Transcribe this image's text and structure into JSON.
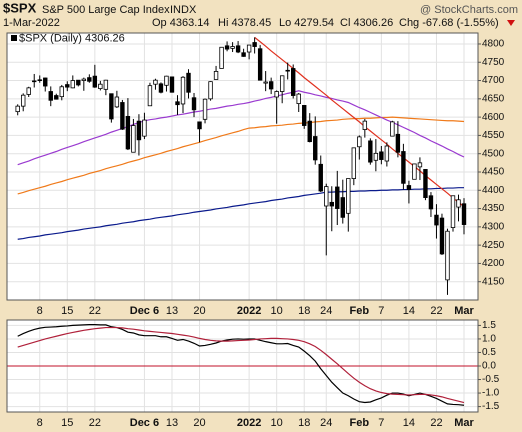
{
  "header": {
    "symbol": "$SPX",
    "name": "S&P 500 Large Cap Index",
    "exchange": "INDX",
    "watermark": "@ StockCharts.com",
    "date": "1-Mar-2022",
    "op": "Op 4363.14",
    "hi": "Hi 4378.45",
    "lo": "Lo 4279.54",
    "cl": "Cl 4306.26",
    "chg": "Chg -67.68 (-1.55%)"
  },
  "chart_data": [
    {
      "type": "candlestick",
      "legend": "$SPX (Daily) 4306.26",
      "categories": [
        null,
        null,
        null,
        null,
        "8",
        null,
        null,
        null,
        null,
        "15",
        null,
        null,
        null,
        null,
        "22",
        null,
        null,
        null,
        null,
        null,
        null,
        null,
        null,
        "Dec 6",
        null,
        null,
        null,
        null,
        "13",
        null,
        null,
        null,
        null,
        "20",
        null,
        null,
        null,
        null,
        null,
        null,
        null,
        null,
        "2022",
        null,
        null,
        null,
        null,
        "10",
        null,
        null,
        null,
        null,
        "18",
        null,
        null,
        null,
        "24",
        null,
        null,
        null,
        null,
        null,
        "Feb",
        null,
        null,
        null,
        "7",
        null,
        null,
        null,
        null,
        "14",
        null,
        null,
        null,
        null,
        "22",
        null,
        null,
        null,
        null,
        "Mar"
      ],
      "open": [
        4615,
        4630,
        4662,
        4699,
        4701,
        4707,
        4670,
        4659,
        4656,
        4689,
        4680,
        4701,
        4700,
        4708,
        4712,
        4678,
        4676,
        4664,
        4628,
        4640,
        4602,
        4504,
        4589,
        4548,
        4631,
        4690,
        4691,
        4687,
        4710,
        4642,
        4636,
        4720,
        4653,
        4587,
        4594,
        4650,
        4703,
        4733,
        4795,
        4788,
        4795,
        4776,
        4778,
        4804,
        4787,
        4693,
        4697,
        4655,
        4670,
        4728,
        4733,
        4637,
        4632,
        4589,
        4547,
        4471,
        4357,
        4367,
        4409,
        4380,
        4337,
        4432,
        4519,
        4566,
        4535,
        4482,
        4505,
        4480,
        4548,
        4553,
        4506,
        4413,
        4430,
        4464,
        4457,
        4385,
        4332,
        4324,
        4155,
        4298,
        4354,
        4363.14
      ],
      "high": [
        4635,
        4665,
        4683,
        4718,
        4714,
        4708,
        4684,
        4664,
        4688,
        4698,
        4714,
        4701,
        4708,
        4717,
        4743,
        4699,
        4702,
        4664,
        4672,
        4647,
        4652,
        4595,
        4608,
        4612,
        4694,
        4705,
        4695,
        4713,
        4710,
        4660,
        4712,
        4731,
        4666,
        4587,
        4651,
        4698,
        4740,
        4791,
        4807,
        4805,
        4808,
        4787,
        4797,
        4818,
        4797,
        4726,
        4708,
        4673,
        4714,
        4749,
        4744,
        4666,
        4632,
        4611,
        4602,
        4495,
        4418,
        4411,
        4453,
        4429,
        4432,
        4517,
        4550,
        4595,
        4542,
        4540,
        4521,
        4531,
        4590,
        4589,
        4527,
        4426,
        4473,
        4490,
        4457,
        4395,
        4362,
        4336,
        4295,
        4385,
        4388,
        4378.45
      ],
      "low": [
        4605,
        4616,
        4655,
        4681,
        4694,
        4670,
        4630,
        4648,
        4646,
        4671,
        4679,
        4684,
        4672,
        4694,
        4680,
        4673,
        4660,
        4585,
        4625,
        4565,
        4510,
        4504,
        4495,
        4540,
        4631,
        4675,
        4665,
        4670,
        4667,
        4606,
        4611,
        4651,
        4600,
        4531,
        4583,
        4645,
        4703,
        4733,
        4780,
        4778,
        4775,
        4765,
        4758,
        4774,
        4700,
        4671,
        4663,
        4582,
        4638,
        4703,
        4651,
        4614,
        4568,
        4531,
        4470,
        4395,
        4222,
        4288,
        4305,
        4309,
        4287,
        4414,
        4484,
        4544,
        4470,
        4452,
        4471,
        4465,
        4548,
        4490,
        4402,
        4364,
        4430,
        4428,
        4373,
        4327,
        4268,
        4223,
        4114,
        4287,
        4315,
        4279.54
      ],
      "close": [
        4630,
        4660,
        4680,
        4697,
        4702,
        4685,
        4646,
        4649,
        4683,
        4682,
        4700,
        4688,
        4704,
        4698,
        4682,
        4690,
        4701,
        4595,
        4655,
        4567,
        4513,
        4577,
        4538,
        4592,
        4686,
        4701,
        4668,
        4712,
        4668,
        4634,
        4709,
        4668,
        4620,
        4568,
        4649,
        4697,
        4725,
        4791,
        4786,
        4793,
        4778,
        4766,
        4797,
        4793,
        4701,
        4696,
        4677,
        4670,
        4713,
        4726,
        4659,
        4663,
        4577,
        4533,
        4483,
        4398,
        4410,
        4357,
        4350,
        4326,
        4432,
        4516,
        4546,
        4589,
        4477,
        4501,
        4484,
        4521,
        4587,
        4504,
        4419,
        4402,
        4472,
        4475,
        4380,
        4349,
        4305,
        4226,
        4288,
        4385,
        4374,
        4306.26
      ],
      "up_color": "#ffffff",
      "down_color": "#000000",
      "series": [
        {
          "color": "#0a1a8c",
          "values": [
            4266,
            4268,
            4271,
            4273,
            4275,
            4278,
            4280,
            4282,
            4284,
            4287,
            4289,
            4291,
            4294,
            4296,
            4298,
            4300,
            4303,
            4305,
            4307,
            4310,
            4312,
            4314,
            4317,
            4319,
            4321,
            4324,
            4326,
            4328,
            4330,
            4333,
            4335,
            4337,
            4340,
            4342,
            4344,
            4346,
            4349,
            4351,
            4353,
            4356,
            4358,
            4360,
            4363,
            4365,
            4367,
            4369,
            4372,
            4374,
            4376,
            4379,
            4381,
            4383,
            4386,
            4388,
            4390,
            4392,
            4395,
            4395,
            4396,
            4396,
            4397,
            4397,
            4398,
            4398,
            4399,
            4399,
            4400,
            4400,
            4401,
            4401,
            4402,
            4402,
            4403,
            4403,
            4404,
            4404,
            4405,
            4405,
            4406,
            4406,
            4407,
            4407
          ]
        },
        {
          "color": "#f07a1a",
          "values": [
            4390,
            4394,
            4399,
            4403,
            4407,
            4411,
            4416,
            4420,
            4424,
            4429,
            4433,
            4437,
            4441,
            4446,
            4450,
            4454,
            4459,
            4463,
            4467,
            4471,
            4476,
            4480,
            4484,
            4489,
            4493,
            4497,
            4501,
            4506,
            4510,
            4514,
            4519,
            4523,
            4527,
            4531,
            4536,
            4540,
            4544,
            4549,
            4553,
            4557,
            4561,
            4566,
            4570,
            4571,
            4573,
            4574,
            4576,
            4577,
            4578,
            4580,
            4581,
            4583,
            4584,
            4585,
            4587,
            4588,
            4590,
            4591,
            4592,
            4594,
            4595,
            4596,
            4596,
            4597,
            4597,
            4598,
            4599,
            4599,
            4600,
            4599,
            4598,
            4597,
            4596,
            4595,
            4594,
            4593,
            4592,
            4591,
            4590,
            4590,
            4589,
            4588
          ]
        },
        {
          "color": "#9a3ad0",
          "values": [
            4470,
            4475,
            4480,
            4486,
            4491,
            4496,
            4501,
            4506,
            4512,
            4517,
            4522,
            4527,
            4533,
            4538,
            4543,
            4548,
            4553,
            4559,
            4564,
            4569,
            4574,
            4580,
            4585,
            4590,
            4593,
            4595,
            4598,
            4600,
            4603,
            4606,
            4608,
            4611,
            4614,
            4616,
            4619,
            4622,
            4624,
            4627,
            4630,
            4632,
            4635,
            4637,
            4640,
            4644,
            4647,
            4651,
            4654,
            4658,
            4661,
            4665,
            4668,
            4672,
            4668,
            4665,
            4661,
            4658,
            4654,
            4651,
            4647,
            4644,
            4640,
            4633,
            4626,
            4620,
            4613,
            4606,
            4599,
            4592,
            4586,
            4579,
            4572,
            4565,
            4558,
            4550,
            4543,
            4535,
            4528,
            4521,
            4513,
            4506,
            4498,
            4491
          ]
        },
        {
          "color": "#e0301e",
          "values": [
            null,
            null,
            null,
            null,
            null,
            null,
            null,
            null,
            null,
            null,
            null,
            null,
            null,
            null,
            null,
            null,
            null,
            null,
            null,
            null,
            null,
            null,
            null,
            null,
            null,
            null,
            null,
            null,
            null,
            null,
            null,
            null,
            null,
            null,
            null,
            null,
            null,
            null,
            null,
            null,
            null,
            null,
            null,
            4818,
            4806,
            4794,
            4781,
            4769,
            4757,
            4745,
            4733,
            4721,
            4708,
            4696,
            4684,
            4672,
            4660,
            4647,
            4635,
            4623,
            4611,
            4599,
            4587,
            4574,
            4562,
            4550,
            4538,
            4526,
            4513,
            4501,
            4489,
            4477,
            4465,
            4453,
            4440,
            4428,
            4416,
            4404,
            4392,
            4379,
            4367,
            4355
          ]
        }
      ],
      "ylim": [
        4100,
        4830
      ],
      "yticks": [
        4150,
        4200,
        4250,
        4300,
        4350,
        4400,
        4450,
        4500,
        4550,
        4600,
        4650,
        4700,
        4750,
        4800
      ],
      "grid": true
    },
    {
      "type": "line",
      "categories": [
        null,
        null,
        null,
        null,
        "8",
        null,
        null,
        null,
        null,
        "15",
        null,
        null,
        null,
        null,
        "22",
        null,
        null,
        null,
        null,
        null,
        null,
        null,
        null,
        "Dec 6",
        null,
        null,
        null,
        null,
        "13",
        null,
        null,
        null,
        null,
        "20",
        null,
        null,
        null,
        null,
        null,
        null,
        null,
        null,
        "2022",
        null,
        null,
        null,
        null,
        "10",
        null,
        null,
        null,
        null,
        "18",
        null,
        null,
        null,
        "24",
        null,
        null,
        null,
        null,
        null,
        "Feb",
        null,
        null,
        null,
        "7",
        null,
        null,
        null,
        null,
        "14",
        null,
        null,
        null,
        null,
        "22",
        null,
        null,
        null,
        null,
        "Mar"
      ],
      "series": [
        {
          "color": "#000000",
          "values": [
            1.1,
            1.2,
            1.28,
            1.35,
            1.4,
            1.43,
            1.44,
            1.45,
            1.47,
            1.48,
            1.5,
            1.51,
            1.52,
            1.53,
            1.53,
            1.52,
            1.52,
            1.45,
            1.42,
            1.35,
            1.25,
            1.22,
            1.15,
            1.12,
            1.12,
            1.12,
            1.08,
            1.08,
            1.02,
            0.95,
            0.98,
            0.92,
            0.84,
            0.74,
            0.76,
            0.8,
            0.85,
            0.92,
            0.96,
            0.99,
            1.0,
            0.99,
            1.0,
            1.0,
            0.95,
            0.9,
            0.86,
            0.82,
            0.82,
            0.83,
            0.76,
            0.7,
            0.55,
            0.38,
            0.18,
            -0.1,
            -0.35,
            -0.6,
            -0.8,
            -1.0,
            -1.1,
            -1.22,
            -1.32,
            -1.35,
            -1.33,
            -1.25,
            -1.18,
            -1.08,
            -1.0,
            -1.0,
            -1.04,
            -1.1,
            -1.05,
            -1.0,
            -1.05,
            -1.12,
            -1.2,
            -1.3,
            -1.4,
            -1.42,
            -1.43,
            -1.45
          ]
        },
        {
          "color": "#b0203a",
          "values": [
            0.7,
            0.76,
            0.82,
            0.88,
            0.94,
            1.0,
            1.05,
            1.1,
            1.15,
            1.2,
            1.24,
            1.28,
            1.32,
            1.35,
            1.38,
            1.4,
            1.42,
            1.42,
            1.42,
            1.41,
            1.38,
            1.36,
            1.33,
            1.3,
            1.28,
            1.26,
            1.24,
            1.22,
            1.2,
            1.17,
            1.14,
            1.11,
            1.07,
            1.02,
            0.98,
            0.95,
            0.93,
            0.92,
            0.92,
            0.93,
            0.94,
            0.95,
            0.96,
            0.98,
            1.0,
            1.01,
            1.02,
            1.02,
            1.01,
            1.0,
            0.98,
            0.95,
            0.9,
            0.82,
            0.72,
            0.58,
            0.42,
            0.25,
            0.08,
            -0.1,
            -0.28,
            -0.45,
            -0.6,
            -0.73,
            -0.84,
            -0.92,
            -0.98,
            -1.02,
            -1.04,
            -1.05,
            -1.06,
            -1.07,
            -1.06,
            -1.05,
            -1.05,
            -1.07,
            -1.1,
            -1.14,
            -1.2,
            -1.25,
            -1.3,
            -1.35
          ]
        }
      ],
      "reference_line": {
        "value": 0,
        "color": "#c0102a"
      },
      "ylim": [
        -1.7,
        1.7
      ],
      "yticks": [
        1.5,
        {
          "value": 1,
          "label": "1.0"
        },
        0.5,
        {
          "value": 0,
          "label": "0.0"
        },
        -0.5,
        {
          "value": -1,
          "label": "-1.0"
        },
        -1.5
      ],
      "grid": true
    }
  ]
}
